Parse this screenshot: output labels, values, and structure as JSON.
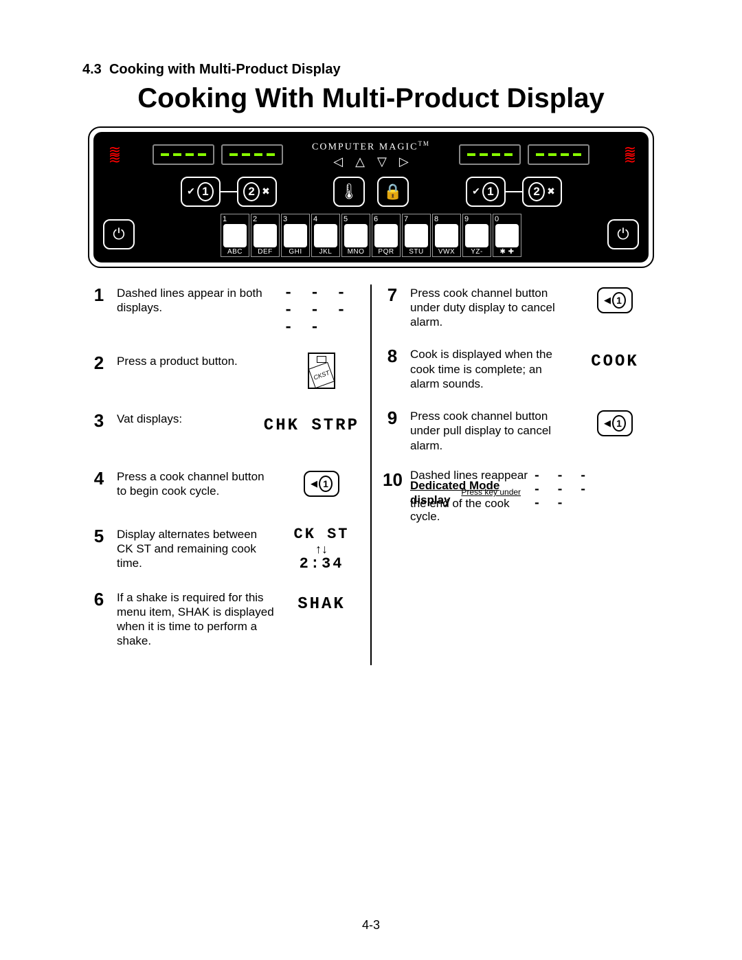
{
  "section_number": "4.3",
  "section_title": "Cooking with Multi-Product Display",
  "main_title": "Cooking With Multi-Product Display",
  "page_number": "4-3",
  "panel": {
    "brand": "COMPUTER MAGIC",
    "tm": "TM",
    "led_dash": "----",
    "channel_buttons": [
      "1",
      "2"
    ],
    "arrow_glyphs": [
      "◁",
      "△",
      "▽",
      "▷"
    ],
    "util_icons": {
      "temp": "🌡",
      "lock": "🔒"
    },
    "power": "⏻",
    "check": "✔",
    "x": "✖",
    "keypad": [
      {
        "num": "1",
        "lbl": "ABC"
      },
      {
        "num": "2",
        "lbl": "DEF"
      },
      {
        "num": "3",
        "lbl": "GHI"
      },
      {
        "num": "4",
        "lbl": "JKL"
      },
      {
        "num": "5",
        "lbl": "MNO"
      },
      {
        "num": "6",
        "lbl": "PQR"
      },
      {
        "num": "7",
        "lbl": "STU"
      },
      {
        "num": "8",
        "lbl": "VWX"
      },
      {
        "num": "9",
        "lbl": "YZ-"
      },
      {
        "num": "0",
        "lbl": "✱ ✚"
      }
    ]
  },
  "dashes_text": "- - - - - - - -",
  "chk_strp": "CHK STRP",
  "ck_st": "CK ST",
  "timer": "2:34",
  "shak": "SHAK",
  "cook": "COOK",
  "alt_arrows": "↑↓",
  "prod_label": "CKST",
  "chan1_num": "1",
  "steps_left": [
    {
      "n": "1",
      "txt": "Dashed lines appear in both displays.",
      "vis": "dashes"
    },
    {
      "n": "2",
      "txt": "Press a product button.",
      "vis": "prod"
    },
    {
      "n": "3",
      "txt": "Vat displays:",
      "vis": "chkstrp"
    },
    {
      "n": "4",
      "txt": "Press a cook channel button to begin cook cycle.",
      "vis": "chan1"
    },
    {
      "n": "5",
      "txt": "Display alternates between CK ST and remaining cook time.",
      "vis": "ckst"
    },
    {
      "n": "6",
      "txt": "If a shake is required for this menu item, SHAK is displayed when it is time to perform a shake.",
      "vis": "shak"
    }
  ],
  "steps_right": [
    {
      "n": "7",
      "txt": "Press cook channel button under duty display to cancel alarm.",
      "vis": "chan1"
    },
    {
      "n": "8",
      "txt": "Cook is displayed when the cook time is complete; an alarm sounds.",
      "vis": "cook"
    },
    {
      "n": "9",
      "txt": "Press cook channel button under pull display to cancel alarm.",
      "vis": "chan1"
    },
    {
      "n": "10",
      "txt": "",
      "vis": "step10"
    }
  ],
  "step10": {
    "l1": "Dashed lines reappear",
    "l2": "Dedicated Mode",
    "l3": "Press key under",
    "l4pre": "the end of the cook",
    "l4disp": "display",
    "l5": "cycle."
  }
}
